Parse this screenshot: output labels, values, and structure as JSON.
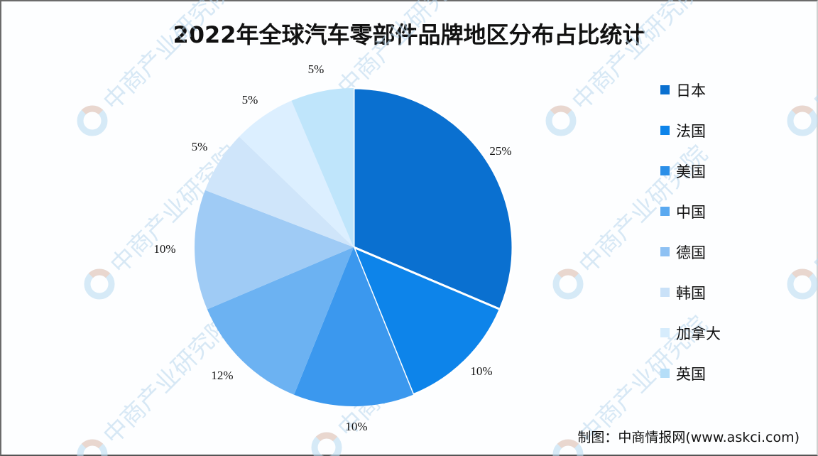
{
  "title": "2022年全球汽车零部件品牌地区分布占比统计",
  "credit": "制图：中商情报网(www.askci.com)",
  "watermark_text": "中商产业研究院",
  "chart_data": {
    "type": "pie",
    "title": "2022年全球汽车零部件品牌地区分布占比统计",
    "categories": [
      "日本",
      "法国",
      "美国",
      "中国",
      "德国",
      "韩国",
      "加拿大",
      "英国"
    ],
    "values": [
      25,
      10,
      10,
      12,
      10,
      5,
      5,
      5
    ],
    "labels": [
      "25%",
      "10%",
      "10%",
      "12%",
      "10%",
      "5%",
      "5%",
      "5%"
    ],
    "colors": [
      "#0a70d0",
      "#0d84ea",
      "#3b98ee",
      "#6cb2f2",
      "#9fcbf5",
      "#cfe5fa",
      "#dcefff",
      "#bfe5fb"
    ],
    "legend_position": "right",
    "start_angle_deg": 0,
    "direction": "clockwise"
  },
  "legend": {
    "items": [
      {
        "label": "日本",
        "color": "#0a70d0"
      },
      {
        "label": "法国",
        "color": "#0d84ea"
      },
      {
        "label": "美国",
        "color": "#2b8fe8"
      },
      {
        "label": "中国",
        "color": "#5aa9f0"
      },
      {
        "label": "德国",
        "color": "#8ec1f3"
      },
      {
        "label": "韩国",
        "color": "#c9e1f8"
      },
      {
        "label": "加拿大",
        "color": "#d6ecfc"
      },
      {
        "label": "英国",
        "color": "#b5def8"
      }
    ]
  }
}
